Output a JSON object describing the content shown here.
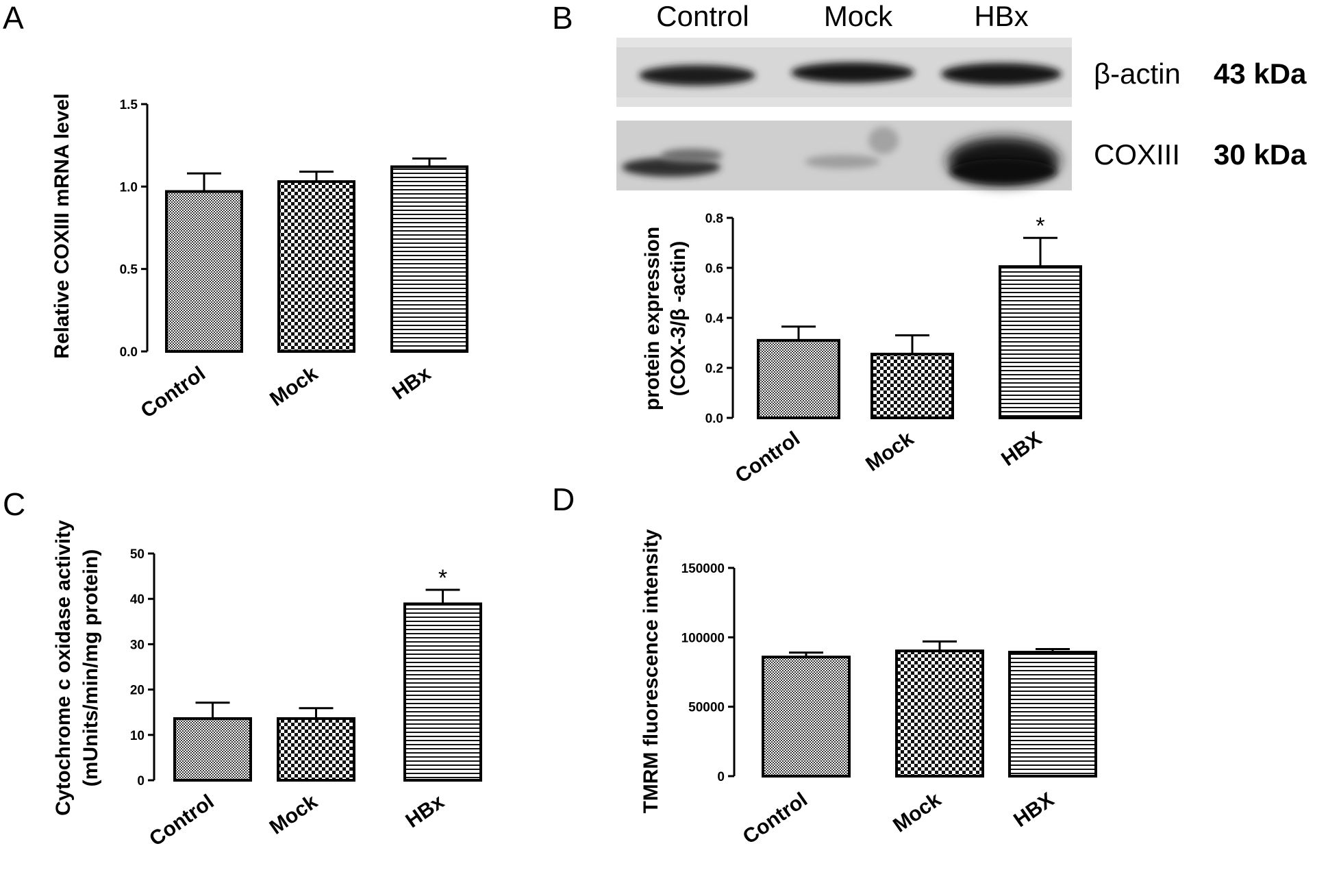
{
  "figure": {
    "panel_letters": {
      "a": "A",
      "b": "B",
      "c": "C",
      "d": "D"
    },
    "blot": {
      "lanes": [
        "Control",
        "Mock",
        "HBx"
      ],
      "rows": [
        {
          "protein": "β-actin",
          "mass": "43 kDa"
        },
        {
          "protein": "COXIII",
          "mass": "30 kDa"
        }
      ]
    }
  },
  "chart_data": [
    {
      "panel": "A",
      "type": "bar",
      "categories": [
        "Control",
        "Mock",
        "HBx"
      ],
      "values": [
        0.97,
        1.03,
        1.12
      ],
      "errors": [
        0.11,
        0.06,
        0.05
      ],
      "patterns": [
        "fine-check",
        "coarse-check",
        "horizontal-lines"
      ],
      "significance": [
        "",
        "",
        ""
      ],
      "ylabel": [
        "Relative COXIII mRNA level"
      ],
      "ylim": [
        0,
        1.5
      ],
      "yticks": [
        "0.0",
        "0.5",
        "1.0",
        "1.5"
      ]
    },
    {
      "panel": "B",
      "type": "bar",
      "categories": [
        "Control",
        "Mock",
        "HBX"
      ],
      "values": [
        0.31,
        0.255,
        0.605
      ],
      "errors": [
        0.055,
        0.075,
        0.115
      ],
      "patterns": [
        "fine-check",
        "coarse-check",
        "horizontal-lines"
      ],
      "significance": [
        "",
        "",
        "*"
      ],
      "ylabel": [
        "protein expression",
        "(COX-3/β -actin)"
      ],
      "ylim": [
        0,
        0.8
      ],
      "yticks": [
        "0.0",
        "0.2",
        "0.4",
        "0.6",
        "0.8"
      ]
    },
    {
      "panel": "C",
      "type": "bar",
      "categories": [
        "Control",
        "Mock",
        "HBx"
      ],
      "values": [
        13.6,
        13.6,
        38.9
      ],
      "errors": [
        3.5,
        2.3,
        3.1
      ],
      "patterns": [
        "fine-check",
        "coarse-check",
        "horizontal-lines"
      ],
      "significance": [
        "",
        "",
        "*"
      ],
      "ylabel": [
        "Cytochrome c oxidase activity",
        "(mUnits/min/mg protein)"
      ],
      "ylim": [
        0,
        50
      ],
      "yticks": [
        "0",
        "10",
        "20",
        "30",
        "40",
        "50"
      ]
    },
    {
      "panel": "D",
      "type": "bar",
      "categories": [
        "Control",
        "Mock",
        "HBX"
      ],
      "values": [
        85800,
        90200,
        89300
      ],
      "errors": [
        3200,
        6800,
        2200
      ],
      "patterns": [
        "fine-check",
        "coarse-check",
        "horizontal-lines"
      ],
      "significance": [
        "",
        "",
        ""
      ],
      "ylabel": [
        "TMRM fluorescence intensity"
      ],
      "ylim": [
        0,
        150000
      ],
      "yticks": [
        "0",
        "50000",
        "100000",
        "150000"
      ]
    }
  ]
}
